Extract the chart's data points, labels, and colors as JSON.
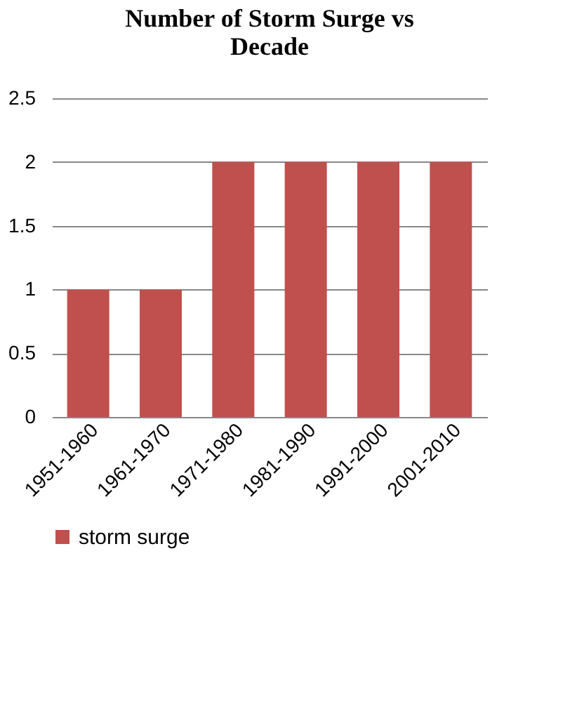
{
  "chart_data": {
    "type": "bar",
    "title": "Number of Storm Surge vs Decade",
    "categories": [
      "1951-1960",
      "1961-1970",
      "1971-1980",
      "1981-1990",
      "1991-2000",
      "2001-2010"
    ],
    "series": [
      {
        "name": "storm surge",
        "color": "#c0504d",
        "values": [
          1,
          1,
          2,
          2,
          2,
          2
        ]
      }
    ],
    "ylim": [
      0,
      2.5
    ],
    "yticks": [
      0,
      0.5,
      1,
      1.5,
      2,
      2.5
    ],
    "grid": "y",
    "legend": "bottom"
  }
}
